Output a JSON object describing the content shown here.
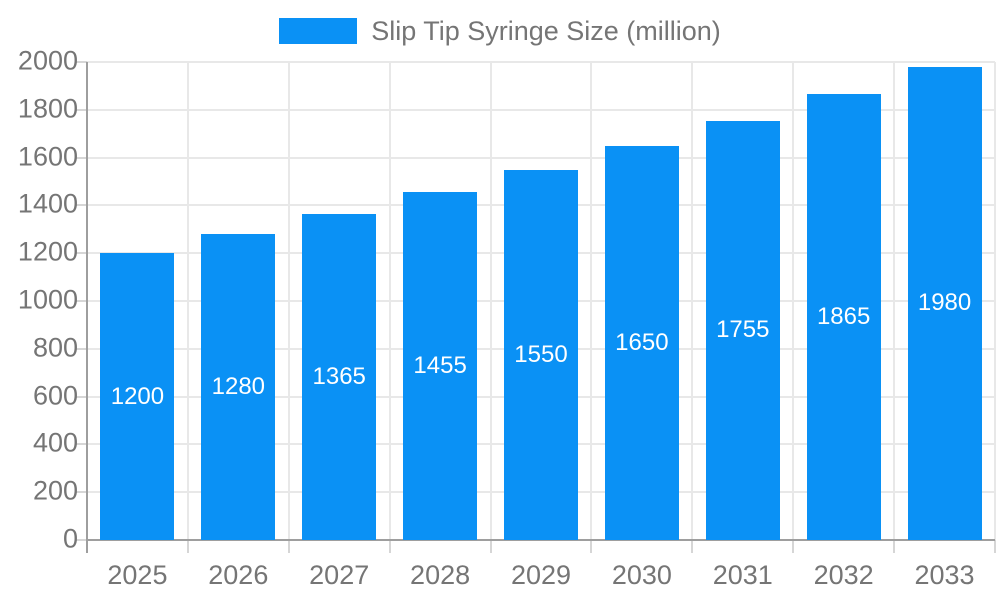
{
  "chart_data": {
    "type": "bar",
    "title": "",
    "legend": {
      "label": "Slip Tip Syringe Size (million)",
      "position": "top",
      "swatch_color": "#0a91f5"
    },
    "categories": [
      "2025",
      "2026",
      "2027",
      "2028",
      "2029",
      "2030",
      "2031",
      "2032",
      "2033"
    ],
    "values": [
      1200,
      1280,
      1365,
      1455,
      1550,
      1650,
      1755,
      1865,
      1980
    ],
    "value_labels": [
      "1200",
      "1280",
      "1365",
      "1455",
      "1550",
      "1650",
      "1755",
      "1865",
      "1980"
    ],
    "ylim": [
      0,
      2000
    ],
    "ytick_step": 200,
    "ytick_labels": [
      "0",
      "200",
      "400",
      "600",
      "800",
      "1000",
      "1200",
      "1400",
      "1600",
      "1800",
      "2000"
    ],
    "grid": "horizontal-and-vertical",
    "xlabel": "",
    "ylabel": "",
    "colors": {
      "bar": "#0a91f5",
      "value_label": "#ffffff",
      "axis": "#9e9e9e",
      "gridline": "#e8e8e8",
      "tick": "#d6d6d6",
      "label_text": "#757575",
      "background": "#ffffff"
    }
  }
}
